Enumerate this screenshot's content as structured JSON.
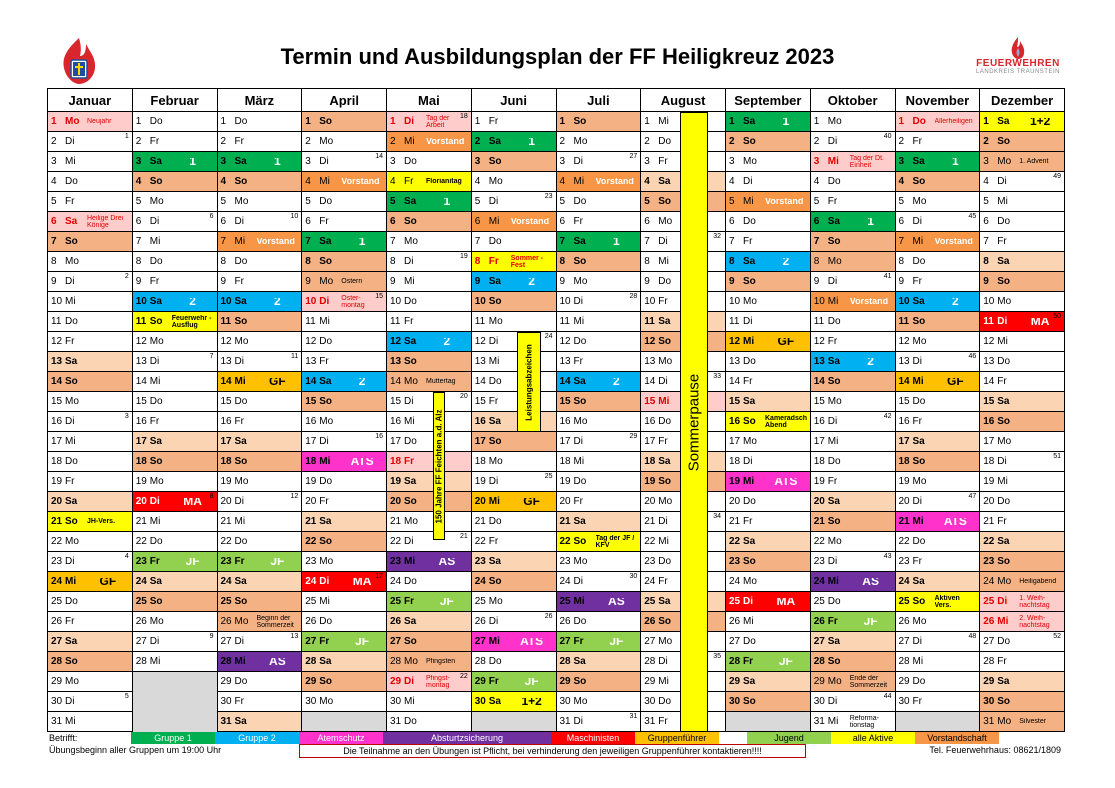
{
  "title": "Termin und Ausbildungsplan der FF Heiligkreuz 2023",
  "logo_right": {
    "line1": "FEUERWEHREN",
    "line2": "LANDKREIS TRAUNSTEIN"
  },
  "months": [
    "Januar",
    "Februar",
    "März",
    "April",
    "Mai",
    "Juni",
    "Juli",
    "August",
    "September",
    "Oktober",
    "November",
    "Dezember"
  ],
  "sommerpause": "Sommerpause",
  "vbar_mai": "150 Jahre FF Feichten a.d. Alz",
  "vbar_juni": "Leistungsabzeichen",
  "colors": {
    "sat": "#fbd4b4",
    "sun": "#f4b183",
    "hol": "#ffcccc",
    "g1": "#00b050",
    "g2": "#00b0f0",
    "ats": "#ff33cc",
    "as": "#7030a0",
    "ma": "#ff0000",
    "gf": "#ffc000",
    "jf": "#92d050",
    "aa": "#ffff00",
    "vs": "#f79646",
    "grey": "#d9d9d9"
  },
  "calendar": [
    {
      "m": "Januar",
      "start": 0,
      "days": [
        {
          "d": 1,
          "n": "Neujahr",
          "bg": "hol",
          "red": 1
        },
        {
          "d": 2,
          "kw": "1"
        },
        {
          "d": 6,
          "n": "Heilige Drei Könige",
          "bg": "hol",
          "red": 1
        },
        {
          "d": 9,
          "kw": "2"
        },
        {
          "d": 16,
          "kw": "3"
        },
        {
          "d": 21,
          "n": "JH-Vers.",
          "nb": 1,
          "bg": "aa"
        },
        {
          "d": 23,
          "kw": "4"
        },
        {
          "d": 24,
          "n": "GF",
          "grp": 1,
          "bg": "gf",
          "dark": 1
        },
        {
          "d": 30,
          "kw": "5"
        }
      ]
    },
    {
      "m": "Februar",
      "start": 3,
      "days": [
        {
          "d": 3,
          "n": "1",
          "grp": 1,
          "bg": "g1"
        },
        {
          "d": 6,
          "kw": "6"
        },
        {
          "d": 10,
          "n": "2",
          "grp": 1,
          "bg": "g2"
        },
        {
          "d": 11,
          "n": "Feuerwehr - Ausflug",
          "nb": 1,
          "bg": "aa"
        },
        {
          "d": 13,
          "kw": "7"
        },
        {
          "d": 20,
          "n": "MA",
          "grp": 1,
          "bg": "ma",
          "red": 1,
          "kw": "8"
        },
        {
          "d": 23,
          "n": "JF",
          "grp": 1,
          "bg": "jf"
        },
        {
          "d": 27,
          "kw": "9"
        }
      ]
    },
    {
      "m": "März",
      "start": 3,
      "days": [
        {
          "d": 3,
          "n": "1",
          "grp": 1,
          "bg": "g1"
        },
        {
          "d": 6,
          "kw": "10"
        },
        {
          "d": 7,
          "n": "Vorstand",
          "bg": "vs",
          "white": 1
        },
        {
          "d": 10,
          "n": "2",
          "grp": 1,
          "bg": "g2"
        },
        {
          "d": 13,
          "kw": "11"
        },
        {
          "d": 14,
          "n": "GF",
          "grp": 1,
          "bg": "gf",
          "dark": 1
        },
        {
          "d": 20,
          "kw": "12"
        },
        {
          "d": 23,
          "n": "JF",
          "grp": 1,
          "bg": "jf"
        },
        {
          "d": 26,
          "n": "Beginn der Sommerzeit",
          "bg": "sun"
        },
        {
          "d": 27,
          "kw": "13"
        },
        {
          "d": 28,
          "n": "AS",
          "grp": 1,
          "bg": "as"
        }
      ]
    },
    {
      "m": "April",
      "start": 6,
      "days": [
        {
          "d": 3,
          "kw": "14"
        },
        {
          "d": 4,
          "n": "Vorstand",
          "bg": "vs",
          "white": 1
        },
        {
          "d": 7,
          "n": "1",
          "grp": 1,
          "bg": "g1"
        },
        {
          "d": 9,
          "n": "Ostern",
          "bg": "sun"
        },
        {
          "d": 10,
          "n": "Oster-montag",
          "bg": "hol",
          "red": 1,
          "kw": "15"
        },
        {
          "d": 14,
          "n": "2",
          "grp": 1,
          "bg": "g2"
        },
        {
          "d": 17,
          "kw": "16"
        },
        {
          "d": 18,
          "n": "ATS",
          "grp": 1,
          "bg": "ats"
        },
        {
          "d": 24,
          "n": "MA",
          "grp": 1,
          "bg": "ma",
          "red": 1,
          "kw": "17"
        },
        {
          "d": 27,
          "n": "JF",
          "grp": 1,
          "bg": "jf"
        }
      ]
    },
    {
      "m": "Mai",
      "start": 1,
      "days": [
        {
          "d": 1,
          "n": "Tag der Arbeit",
          "bg": "hol",
          "red": 1,
          "kw": "18"
        },
        {
          "d": 2,
          "n": "Vorstand",
          "bg": "vs",
          "white": 1
        },
        {
          "d": 4,
          "n": "Florianitag",
          "nb": 1,
          "bg": "aa"
        },
        {
          "d": 5,
          "n": "1",
          "grp": 1,
          "bg": "g1"
        },
        {
          "d": 8,
          "kw": "19"
        },
        {
          "d": 12,
          "n": "2",
          "grp": 1,
          "bg": "g2"
        },
        {
          "d": 14,
          "n": "Muttertag",
          "bg": "sun"
        },
        {
          "d": 15,
          "kw": "20"
        },
        {
          "d": 18,
          "bg": "hol",
          "red": 1
        },
        {
          "d": 22,
          "kw": "21"
        },
        {
          "d": 23,
          "n": "AS",
          "grp": 1,
          "bg": "as"
        },
        {
          "d": 25,
          "n": "JF",
          "grp": 1,
          "bg": "jf"
        },
        {
          "d": 28,
          "n": "Pfingsten",
          "bg": "sun"
        },
        {
          "d": 29,
          "n": "Pfingst-montag",
          "bg": "hol",
          "red": 1,
          "kw": "22"
        }
      ]
    },
    {
      "m": "Juni",
      "start": 4,
      "days": [
        {
          "d": 2,
          "n": "1",
          "grp": 1,
          "bg": "g1"
        },
        {
          "d": 5,
          "kw": "23"
        },
        {
          "d": 6,
          "n": "Vorstand",
          "bg": "vs",
          "white": 1
        },
        {
          "d": 8,
          "n": "Sommer - Fest",
          "nb": 1,
          "bg": "aa",
          "red": 1
        },
        {
          "d": 9,
          "n": "2",
          "grp": 1,
          "bg": "g2"
        },
        {
          "d": 12,
          "kw": "24"
        },
        {
          "d": 19,
          "kw": "25"
        },
        {
          "d": 20,
          "n": "GF",
          "grp": 1,
          "bg": "gf",
          "dark": 1
        },
        {
          "d": 26,
          "kw": "26"
        },
        {
          "d": 27,
          "n": "ATS",
          "grp": 1,
          "bg": "ats"
        },
        {
          "d": 29,
          "n": "JF",
          "grp": 1,
          "bg": "jf"
        },
        {
          "d": 30,
          "n": "1+2",
          "grp": 1,
          "bg": "aa",
          "dark": 1
        }
      ]
    },
    {
      "m": "Juli",
      "start": 6,
      "days": [
        {
          "d": 3,
          "kw": "27"
        },
        {
          "d": 4,
          "n": "Vorstand",
          "bg": "vs",
          "white": 1
        },
        {
          "d": 7,
          "n": "1",
          "grp": 1,
          "bg": "g1"
        },
        {
          "d": 10,
          "kw": "28"
        },
        {
          "d": 14,
          "n": "2",
          "grp": 1,
          "bg": "g2"
        },
        {
          "d": 17,
          "kw": "29"
        },
        {
          "d": 22,
          "n": "Tag der JF / KFV",
          "nb": 1,
          "bg": "aa"
        },
        {
          "d": 24,
          "kw": "30"
        },
        {
          "d": 25,
          "n": "AS",
          "grp": 1,
          "bg": "as"
        },
        {
          "d": 27,
          "n": "JF",
          "grp": 1,
          "bg": "jf"
        },
        {
          "d": 31,
          "kw": "31"
        }
      ]
    },
    {
      "m": "August",
      "start": 2,
      "days": [
        {
          "d": 7,
          "kw": "32"
        },
        {
          "d": 14,
          "kw": "33"
        },
        {
          "d": 15,
          "bg": "hol",
          "red": 1
        },
        {
          "d": 21,
          "kw": "34"
        },
        {
          "d": 28,
          "kw": "35"
        }
      ]
    },
    {
      "m": "September",
      "start": 5,
      "days": [
        {
          "d": 1,
          "n": "1",
          "grp": 1,
          "bg": "g1"
        },
        {
          "d": 5,
          "n": "Vorstand",
          "bg": "vs",
          "white": 1
        },
        {
          "d": 8,
          "n": "2",
          "grp": 1,
          "bg": "g2"
        },
        {
          "d": 12,
          "n": "GF",
          "grp": 1,
          "bg": "gf",
          "dark": 1
        },
        {
          "d": 16,
          "n": "Kameradsch. Abend",
          "nb": 1,
          "bg": "aa"
        },
        {
          "d": 19,
          "n": "ATS",
          "grp": 1,
          "bg": "ats"
        },
        {
          "d": 25,
          "n": "MA",
          "grp": 1,
          "bg": "ma",
          "red": 1
        },
        {
          "d": 28,
          "n": "JF",
          "grp": 1,
          "bg": "jf"
        }
      ]
    },
    {
      "m": "Oktober",
      "start": 0,
      "days": [
        {
          "d": 2,
          "kw": "40"
        },
        {
          "d": 3,
          "n": "Tag der Dt. Einheit",
          "bg": "hol",
          "red": 1
        },
        {
          "d": 6,
          "n": "1",
          "grp": 1,
          "bg": "g1"
        },
        {
          "d": 8,
          "bg": "sun"
        },
        {
          "d": 9,
          "kw": "41"
        },
        {
          "d": 10,
          "n": "Vorstand",
          "bg": "vs",
          "white": 1
        },
        {
          "d": 13,
          "n": "2",
          "grp": 1,
          "bg": "g2"
        },
        {
          "d": 16,
          "kw": "42"
        },
        {
          "d": 23,
          "kw": "43"
        },
        {
          "d": 24,
          "n": "AS",
          "grp": 1,
          "bg": "as"
        },
        {
          "d": 26,
          "n": "JF",
          "grp": 1,
          "bg": "jf"
        },
        {
          "d": 29,
          "n": "Ende der Sommerzeit",
          "bg": "sun"
        },
        {
          "d": 30,
          "kw": "44"
        },
        {
          "d": 31,
          "n": "Reforma-tionstag",
          "bg": "none"
        }
      ]
    },
    {
      "m": "November",
      "start": 3,
      "days": [
        {
          "d": 1,
          "n": "Allerheiligen",
          "bg": "hol",
          "red": 1
        },
        {
          "d": 3,
          "n": "1",
          "grp": 1,
          "bg": "g1"
        },
        {
          "d": 6,
          "kw": "45"
        },
        {
          "d": 7,
          "n": "Vorstand",
          "bg": "vs",
          "white": 1
        },
        {
          "d": 10,
          "n": "2",
          "grp": 1,
          "bg": "g2"
        },
        {
          "d": 13,
          "kw": "46"
        },
        {
          "d": 14,
          "n": "GF",
          "grp": 1,
          "bg": "gf",
          "dark": 1
        },
        {
          "d": 20,
          "kw": "47"
        },
        {
          "d": 21,
          "n": "ATS",
          "grp": 1,
          "bg": "ats"
        },
        {
          "d": 25,
          "n": "Aktiven Vers.",
          "nb": 1,
          "bg": "aa"
        },
        {
          "d": 27,
          "kw": "48"
        }
      ]
    },
    {
      "m": "Dezember",
      "start": 5,
      "days": [
        {
          "d": 1,
          "n": "1+2",
          "grp": 1,
          "bg": "aa",
          "dark": 1
        },
        {
          "d": 3,
          "n": "1. Advent",
          "bg": "sun"
        },
        {
          "d": 4,
          "kw": "49"
        },
        {
          "d": 11,
          "n": "MA",
          "grp": 1,
          "bg": "ma",
          "red": 1,
          "kw": "50"
        },
        {
          "d": 18,
          "kw": "51"
        },
        {
          "d": 24,
          "n": "Heiligabend",
          "bg": "sun"
        },
        {
          "d": 25,
          "n": "1. Weih-nachtstag",
          "bg": "hol",
          "red": 1
        },
        {
          "d": 26,
          "n": "2. Weih-nachtstag",
          "bg": "hol",
          "red": 1
        },
        {
          "d": 31,
          "n": "Silvester",
          "bg": "sun"
        },
        {
          "d": 27,
          "kw": "52"
        }
      ]
    }
  ],
  "weekdays": [
    "Mo",
    "Di",
    "Mi",
    "Do",
    "Fr",
    "Sa",
    "So"
  ],
  "legend": {
    "label": "Betrifft:",
    "items": [
      [
        "Gruppe 1",
        "g1"
      ],
      [
        "Gruppe 2",
        "g2"
      ],
      [
        "Atemschutz",
        "ats"
      ],
      [
        "Absturtzsicherung",
        "as"
      ],
      [
        "Maschinisten",
        "ma"
      ],
      [
        "Gruppenführer",
        "gf"
      ],
      [
        "Jugend",
        "jf"
      ],
      [
        "alle Aktive",
        "aa"
      ],
      [
        "Vorstandschaft",
        "vs"
      ]
    ]
  },
  "footer": {
    "left": "Übungsbeginn aller Gruppen um 19:00 Uhr",
    "notice": "Die Teilnahme an den Übungen ist Pflicht, bei verhinderung den jeweiligen Gruppenführer kontaktieren!!!!",
    "right": "Tel. Feuerwehrhaus: 08621/1809"
  }
}
